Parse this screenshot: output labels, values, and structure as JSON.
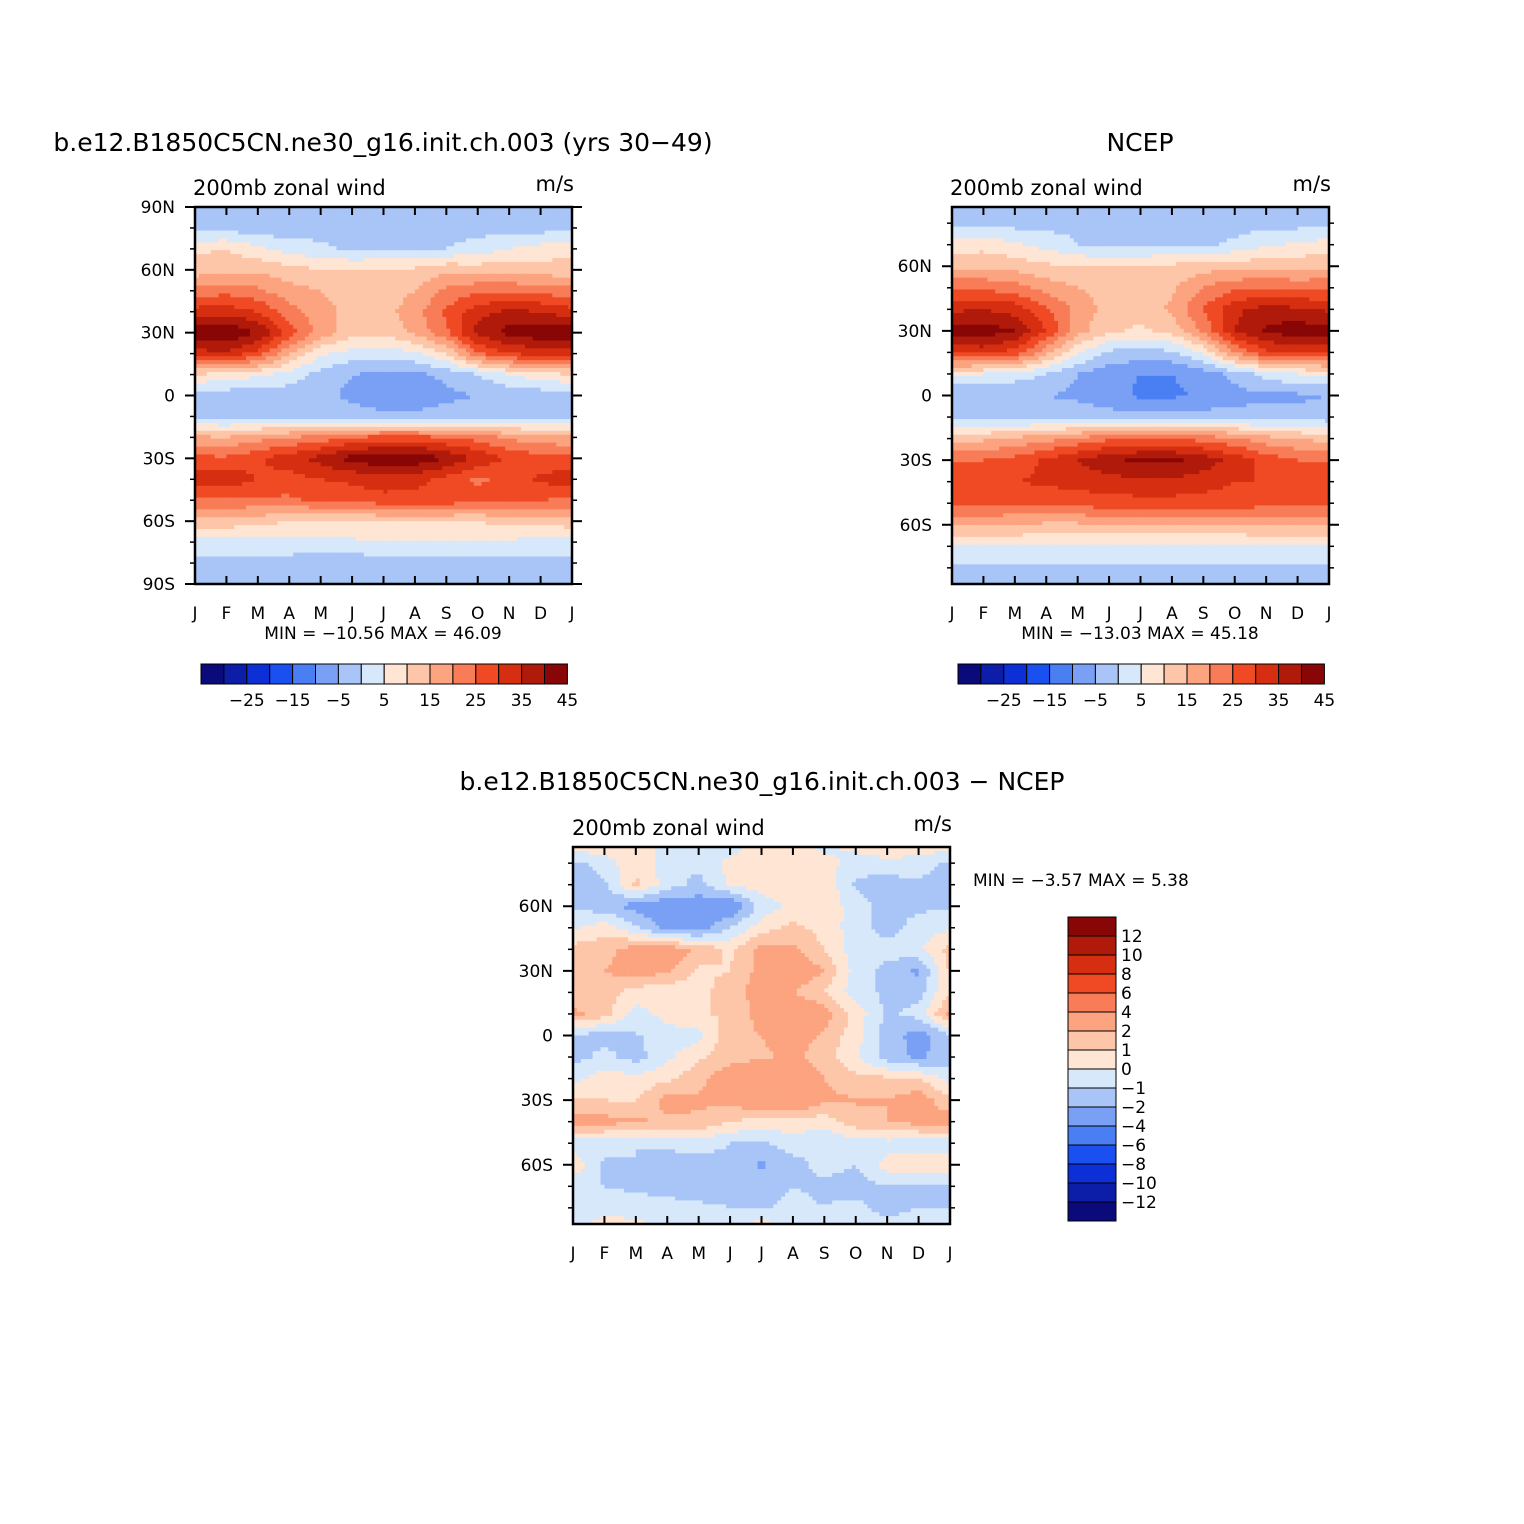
{
  "figure": {
    "panels": [
      {
        "key": "model",
        "title": "b.e12.B1850C5CN.ne30_g16.init.ch.003 (yrs 30−49)",
        "left_label": "200mb  zonal  wind",
        "right_label": "m/s",
        "stats": "MIN  =  −10.56  MAX  =    46.09"
      },
      {
        "key": "ncep",
        "title": "NCEP",
        "left_label": "200mb  zonal  wind",
        "right_label": "m/s",
        "stats": "MIN  =  −13.03  MAX  =    45.18"
      },
      {
        "key": "diff",
        "title": "b.e12.B1850C5CN.ne30_g16.init.ch.003  −  NCEP",
        "left_label": "200mb  zonal  wind",
        "right_label": "m/s",
        "stats": "MIN  =    −3.57  MAX  =     5.38"
      }
    ]
  },
  "chart_data": [
    {
      "type": "heatmap",
      "name": "model",
      "title": "b.e12.B1850C5CN.ne30_g16.init.ch.003 (yrs 30−49)",
      "subtitle": "200mb  zonal  wind",
      "units": "m/s",
      "x_ticks": [
        "J",
        "F",
        "M",
        "A",
        "M",
        "J",
        "J",
        "A",
        "S",
        "O",
        "N",
        "D",
        "J"
      ],
      "y_ticks": [
        "90N",
        "60N",
        "30N",
        "0",
        "30S",
        "60S",
        "90S"
      ],
      "ylim": [
        -90,
        90
      ],
      "month_x": [
        0,
        1,
        2,
        3,
        4,
        5,
        6,
        7,
        8,
        9,
        10,
        11,
        12
      ],
      "lat_y": [
        90,
        80,
        70,
        60,
        50,
        40,
        30,
        20,
        10,
        0,
        -10,
        -20,
        -30,
        -40,
        -50,
        -60,
        -70,
        -80,
        -90
      ],
      "values": [
        [
          -3,
          -3,
          -3,
          -3,
          -3,
          -3,
          -3,
          -3,
          -3,
          -3,
          -3,
          -3,
          -3
        ],
        [
          -2,
          -2,
          -3,
          -3,
          -2,
          -2,
          -2,
          -2,
          -2,
          -2,
          -2,
          -2,
          -2
        ],
        [
          9,
          10,
          6,
          3,
          1,
          -1,
          0,
          0,
          0,
          2,
          5,
          7,
          9
        ],
        [
          12,
          13,
          14,
          12,
          10,
          10,
          10,
          11,
          14,
          13,
          13,
          12,
          12
        ],
        [
          22,
          23,
          21,
          17,
          15,
          13,
          12,
          15,
          21,
          24,
          24,
          23,
          22
        ],
        [
          32,
          33,
          30,
          22,
          17,
          13,
          13,
          18,
          26,
          33,
          36,
          35,
          32
        ],
        [
          43,
          45,
          40,
          28,
          18,
          12,
          11,
          16,
          24,
          37,
          42,
          44,
          43
        ],
        [
          33,
          34,
          28,
          15,
          6,
          3,
          2,
          4,
          10,
          24,
          30,
          32,
          33
        ],
        [
          10,
          8,
          6,
          3,
          -2,
          -5,
          -6,
          -6,
          -4,
          0,
          5,
          8,
          10
        ],
        [
          -3,
          -3,
          -3,
          -3,
          -4,
          -6,
          -8,
          -8,
          -6,
          -5,
          -4,
          -3,
          -3
        ],
        [
          -2,
          -2,
          -2,
          -3,
          -3,
          -3,
          -4,
          -4,
          -3,
          -3,
          -2,
          -2,
          -2
        ],
        [
          16,
          15,
          18,
          20,
          22,
          25,
          27,
          27,
          25,
          23,
          19,
          17,
          16
        ],
        [
          26,
          26,
          29,
          33,
          37,
          42,
          44,
          44,
          40,
          34,
          29,
          27,
          26
        ],
        [
          33,
          33,
          30,
          28,
          30,
          31,
          33,
          32,
          28,
          24,
          27,
          31,
          33
        ],
        [
          24,
          24,
          24,
          24,
          26,
          27,
          28,
          28,
          28,
          27,
          26,
          25,
          24
        ],
        [
          13,
          13,
          12,
          10,
          10,
          10,
          10,
          10,
          10,
          10,
          12,
          12,
          13
        ],
        [
          3,
          3,
          3,
          3,
          4,
          4,
          5,
          5,
          5,
          5,
          4,
          3,
          3
        ],
        [
          -2,
          -2,
          -2,
          -2,
          -3,
          -3,
          -3,
          -3,
          -3,
          -2,
          -2,
          -2,
          -2
        ],
        [
          -4,
          -4,
          -4,
          -4,
          -4,
          -4,
          -4,
          -4,
          -4,
          -4,
          -4,
          -4,
          -4
        ]
      ],
      "min": -10.56,
      "max": 46.09
    },
    {
      "type": "heatmap",
      "name": "ncep",
      "title": "NCEP",
      "subtitle": "200mb  zonal  wind",
      "units": "m/s",
      "x_ticks": [
        "J",
        "F",
        "M",
        "A",
        "M",
        "J",
        "J",
        "A",
        "S",
        "O",
        "N",
        "D",
        "J"
      ],
      "y_ticks": [
        "60N",
        "30N",
        "0",
        "30S",
        "60S"
      ],
      "ylim": [
        -87.5,
        87.5
      ],
      "month_x": [
        0,
        1,
        2,
        3,
        4,
        5,
        6,
        7,
        8,
        9,
        10,
        11,
        12
      ],
      "lat_y": [
        87.5,
        80,
        70,
        60,
        50,
        40,
        30,
        20,
        10,
        0,
        -10,
        -20,
        -30,
        -40,
        -50,
        -60,
        -70,
        -80,
        -87.5
      ],
      "values": [
        [
          -3,
          -3,
          -3,
          -3,
          -3,
          -3,
          -3,
          -3,
          -3,
          -3,
          -3,
          -3,
          -3
        ],
        [
          -1,
          -1,
          -2,
          -2,
          -1,
          -2,
          -2,
          -2,
          -2,
          -2,
          -2,
          -2,
          -1
        ],
        [
          7,
          8,
          6,
          3,
          0,
          -2,
          -1,
          -1,
          -1,
          1,
          4,
          6,
          7
        ],
        [
          14,
          14,
          13,
          11,
          10,
          10,
          10,
          11,
          13,
          13,
          13,
          13,
          14
        ],
        [
          24,
          24,
          22,
          18,
          15,
          13,
          12,
          14,
          20,
          24,
          25,
          24,
          24
        ],
        [
          34,
          35,
          33,
          26,
          18,
          13,
          12,
          16,
          25,
          34,
          37,
          36,
          34
        ],
        [
          42,
          43,
          40,
          30,
          17,
          11,
          9,
          12,
          21,
          35,
          41,
          43,
          42
        ],
        [
          31,
          32,
          28,
          17,
          6,
          -1,
          -2,
          -1,
          6,
          20,
          29,
          31,
          31
        ],
        [
          6,
          5,
          3,
          0,
          -5,
          -8,
          -10,
          -10,
          -8,
          -3,
          2,
          5,
          6
        ],
        [
          -5,
          -5,
          -5,
          -5,
          -6,
          -8,
          -11,
          -11,
          -9,
          -7,
          -6,
          -6,
          -5
        ],
        [
          -3,
          -2,
          -2,
          -2,
          -2,
          -3,
          -3,
          -3,
          -3,
          -3,
          -3,
          -3,
          -3
        ],
        [
          13,
          14,
          16,
          18,
          21,
          24,
          25,
          25,
          23,
          21,
          17,
          15,
          13
        ],
        [
          24,
          25,
          27,
          31,
          35,
          39,
          41,
          41,
          38,
          33,
          28,
          25,
          24
        ],
        [
          30,
          30,
          30,
          31,
          32,
          33,
          34,
          34,
          32,
          30,
          30,
          30,
          30
        ],
        [
          27,
          27,
          26,
          26,
          27,
          28,
          28,
          28,
          28,
          28,
          27,
          27,
          27
        ],
        [
          15,
          15,
          15,
          14,
          14,
          15,
          15,
          15,
          15,
          15,
          15,
          15,
          15
        ],
        [
          5,
          5,
          5,
          4,
          4,
          4,
          4,
          4,
          4,
          4,
          5,
          5,
          5
        ],
        [
          -1,
          -1,
          -1,
          -1,
          -1,
          -1,
          -1,
          -1,
          -1,
          -1,
          -1,
          -1,
          -1
        ],
        [
          -3,
          -3,
          -3,
          -3,
          -3,
          -3,
          -3,
          -3,
          -3,
          -3,
          -3,
          -3,
          -3
        ]
      ],
      "min": -13.03,
      "max": 45.18
    },
    {
      "type": "heatmap",
      "name": "diff",
      "title": "b.e12.B1850C5CN.ne30_g16.init.ch.003  −  NCEP",
      "subtitle": "200mb  zonal  wind",
      "units": "m/s",
      "x_ticks": [
        "J",
        "F",
        "M",
        "A",
        "M",
        "J",
        "J",
        "A",
        "S",
        "O",
        "N",
        "D",
        "J"
      ],
      "y_ticks": [
        "60N",
        "30N",
        "0",
        "30S",
        "60S"
      ],
      "ylim": [
        -87.5,
        87.5
      ],
      "month_x": [
        0,
        1,
        2,
        3,
        4,
        5,
        6,
        7,
        8,
        9,
        10,
        11,
        12
      ],
      "lat_y": [
        87.5,
        80,
        70,
        60,
        50,
        40,
        30,
        20,
        10,
        0,
        -10,
        -20,
        -30,
        -40,
        -50,
        -60,
        -70,
        -80,
        -87.5
      ],
      "values": [
        [
          0.5,
          0.6,
          0.5,
          -0.3,
          -0.2,
          -0.5,
          0.6,
          0.5,
          -0.3,
          0.3,
          0.7,
          0.5,
          0.5
        ],
        [
          -1.3,
          -0.6,
          0.8,
          -0.5,
          -0.7,
          0.3,
          0.4,
          0.6,
          0.5,
          -0.6,
          -0.3,
          -0.5,
          -1.3
        ],
        [
          -1.5,
          -1.2,
          1.2,
          -0.5,
          -1.4,
          0.2,
          0.5,
          1.0,
          0.8,
          -1.2,
          -1.5,
          -1.2,
          -1.5
        ],
        [
          -1.2,
          -1.6,
          -2.5,
          -2.8,
          -2.6,
          -3.2,
          -0.6,
          0.2,
          0.6,
          -0.4,
          -1.5,
          -1.2,
          -1.2
        ],
        [
          -0.2,
          0.6,
          -0.8,
          -2.5,
          -2.7,
          -1.0,
          0.5,
          1.3,
          0.6,
          -0.5,
          -1.5,
          -0.5,
          -0.2
        ],
        [
          1.4,
          1.6,
          2.5,
          2.8,
          1.8,
          0.8,
          2.4,
          2.2,
          1.0,
          -0.5,
          -0.6,
          -0.2,
          1.4
        ],
        [
          1.2,
          2.0,
          2.6,
          2.2,
          0.8,
          1.0,
          2.4,
          3.0,
          2.0,
          -0.4,
          -1.4,
          -2.2,
          1.2
        ],
        [
          1.0,
          1.6,
          0.5,
          0.2,
          0.6,
          1.6,
          2.5,
          2.0,
          1.0,
          -0.6,
          -1.2,
          -1.5,
          1.0
        ],
        [
          2.3,
          1.4,
          -0.4,
          0.4,
          1.0,
          1.0,
          2.5,
          3.4,
          2.6,
          0.6,
          -1.3,
          -0.6,
          2.3
        ],
        [
          -1.2,
          -1.4,
          -1.1,
          -0.5,
          -0.4,
          1.8,
          2.0,
          2.6,
          1.8,
          0.4,
          -1.4,
          -2.5,
          -1.2
        ],
        [
          -1.4,
          -0.7,
          -1.4,
          -0.2,
          0.8,
          1.6,
          1.8,
          2.3,
          1.4,
          0.2,
          -1.5,
          -2.2,
          -1.4
        ],
        [
          -0.4,
          0.6,
          0.3,
          0.8,
          1.6,
          2.8,
          3.5,
          3.4,
          2.0,
          1.3,
          1.2,
          1.0,
          -0.4
        ],
        [
          1.2,
          1.0,
          0.9,
          2.4,
          2.2,
          2.4,
          3.2,
          3.5,
          2.2,
          2.1,
          2.0,
          2.7,
          1.2
        ],
        [
          2.6,
          2.4,
          2.2,
          1.8,
          1.8,
          1.0,
          0.6,
          0.6,
          0.4,
          1.6,
          2.0,
          2.4,
          2.6
        ],
        [
          -0.6,
          -0.6,
          -1.0,
          -0.6,
          -0.4,
          -1.0,
          -1.2,
          -0.4,
          -1.0,
          -0.5,
          -0.4,
          -0.6,
          -0.6
        ],
        [
          0.8,
          -1.2,
          -1.0,
          -1.8,
          -1.6,
          -1.4,
          -2.2,
          -1.4,
          -0.6,
          -1.0,
          0.4,
          0.6,
          0.8
        ],
        [
          -1.0,
          -1.0,
          -1.2,
          -1.2,
          -1.5,
          -1.4,
          -1.6,
          -1.0,
          -1.3,
          -1.5,
          -1.0,
          -1.2,
          -1.0
        ],
        [
          -1.0,
          -0.4,
          -0.6,
          -0.8,
          -0.8,
          -1.0,
          -1.2,
          -0.6,
          -1.0,
          -0.6,
          -1.6,
          -1.0,
          -1.0
        ],
        [
          -0.3,
          0.3,
          0.3,
          -0.4,
          -0.4,
          -0.4,
          0.3,
          -0.4,
          -0.4,
          -0.4,
          -0.4,
          -0.3,
          -0.3
        ]
      ],
      "min": -3.57,
      "max": 5.38
    }
  ],
  "colorbars": {
    "main_levels": [
      -30,
      -25,
      -20,
      -15,
      -10,
      -5,
      0,
      5,
      10,
      15,
      20,
      25,
      30,
      35,
      40,
      45
    ],
    "main_labels": [
      "−25",
      "−15",
      "−5",
      "5",
      "15",
      "25",
      "35",
      "45"
    ],
    "main_colors": [
      "#0a0a7a",
      "#0c1da8",
      "#0d30d6",
      "#1a4ff0",
      "#4a7ff3",
      "#7aa0f5",
      "#a9c5f7",
      "#d7e8fb",
      "#fee5d4",
      "#fdc6a8",
      "#fca37f",
      "#f77c57",
      "#f04a25",
      "#d62e10",
      "#b01a0a",
      "#880606"
    ],
    "diff_levels": [
      -12,
      -10,
      -8,
      -6,
      -4,
      -2,
      -1,
      0,
      1,
      2,
      4,
      6,
      8,
      10,
      12
    ],
    "diff_labels": [
      "12",
      "10",
      "8",
      "6",
      "4",
      "2",
      "1",
      "0",
      "−1",
      "−2",
      "−4",
      "−6",
      "−8",
      "−10",
      "−12"
    ],
    "diff_colors": [
      "#0a0a7a",
      "#0c1da8",
      "#0d30d6",
      "#1a4ff0",
      "#4a7ff3",
      "#7aa0f5",
      "#a9c5f7",
      "#d7e8fb",
      "#fee5d4",
      "#fdc6a8",
      "#fca37f",
      "#f77c57",
      "#f04a25",
      "#d62e10",
      "#b01a0a",
      "#880606"
    ]
  }
}
